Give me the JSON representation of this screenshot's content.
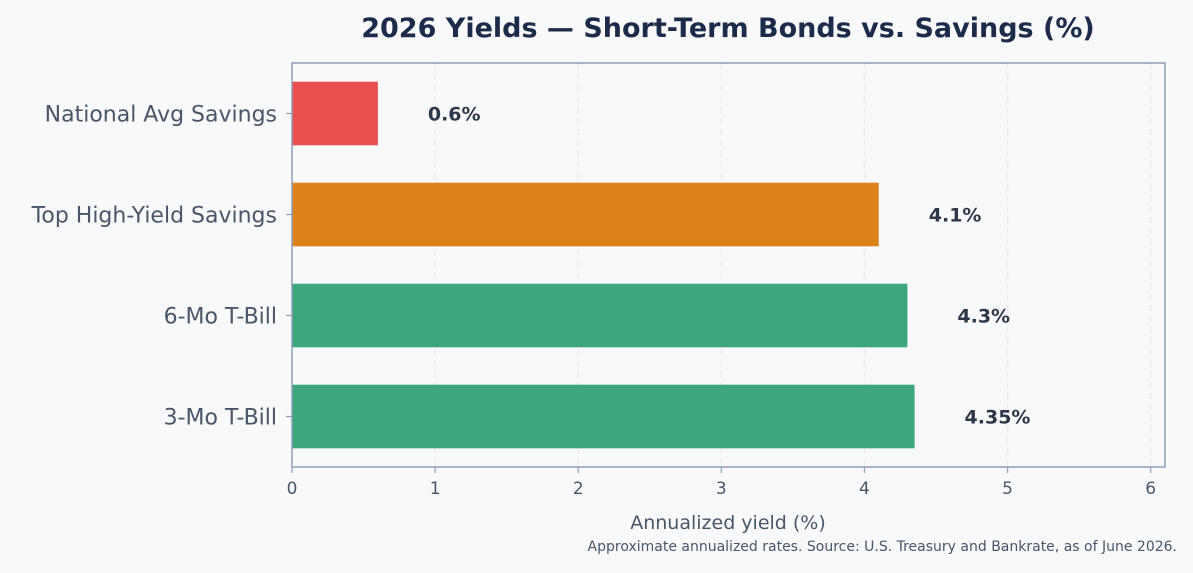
{
  "chart_data": {
    "type": "bar",
    "orientation": "horizontal",
    "title": "2026 Yields — Short-Term Bonds vs. Savings (%)",
    "xlabel": "Annualized yield (%)",
    "ylabel": "",
    "categories": [
      "3-Mo T-Bill",
      "6-Mo T-Bill",
      "Top High-Yield Savings",
      "National Avg Savings"
    ],
    "values": [
      4.35,
      4.3,
      4.1,
      0.6
    ],
    "value_labels": [
      "4.35%",
      "4.3%",
      "4.1%",
      "0.6%"
    ],
    "colors": [
      "#3ea67c",
      "#3ea67c",
      "#db821a",
      "#e84f4f"
    ],
    "xlim": [
      0,
      6.1
    ],
    "xticks": [
      0,
      1,
      2,
      3,
      4,
      5,
      6
    ],
    "grid": "vertical dashed",
    "footnote": "Approximate annualized rates. Source: U.S. Treasury and Bankrate, as of June 2026."
  }
}
